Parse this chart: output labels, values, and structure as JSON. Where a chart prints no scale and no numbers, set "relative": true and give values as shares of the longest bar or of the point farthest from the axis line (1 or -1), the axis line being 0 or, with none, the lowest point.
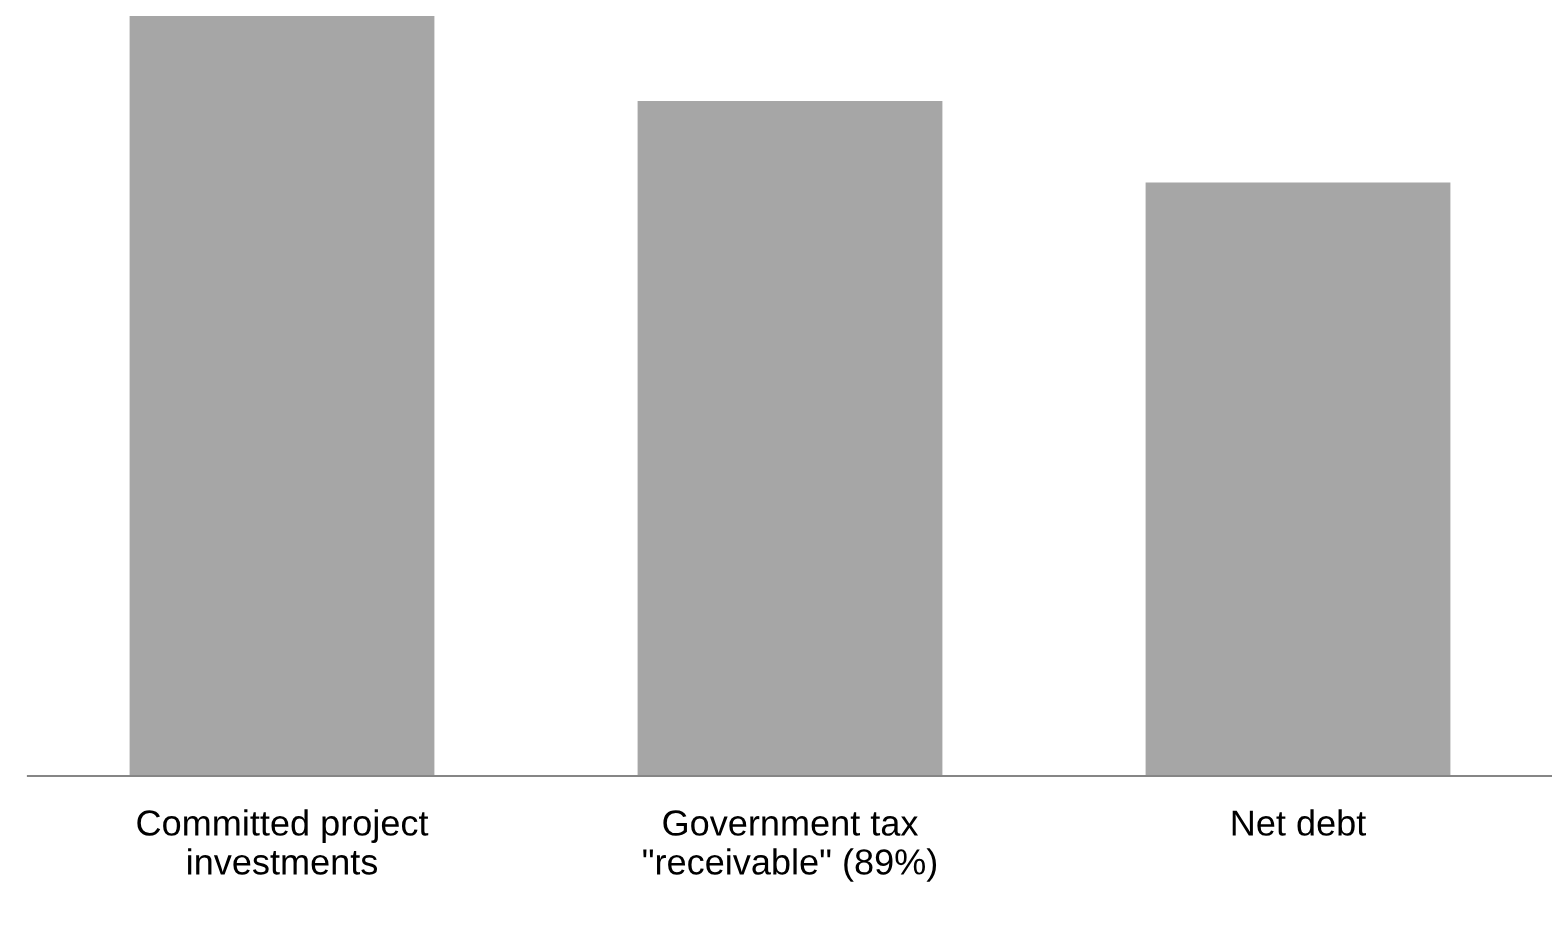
{
  "chart_data": {
    "type": "bar",
    "relative": true,
    "categories": [
      "Committed project\ninvestments",
      "Government tax\n\"receivable\" (89%)",
      "Net debt"
    ],
    "values": [
      1,
      0.888,
      0.781
    ],
    "color": "#a6a6a6",
    "grid": false,
    "legend": false
  }
}
